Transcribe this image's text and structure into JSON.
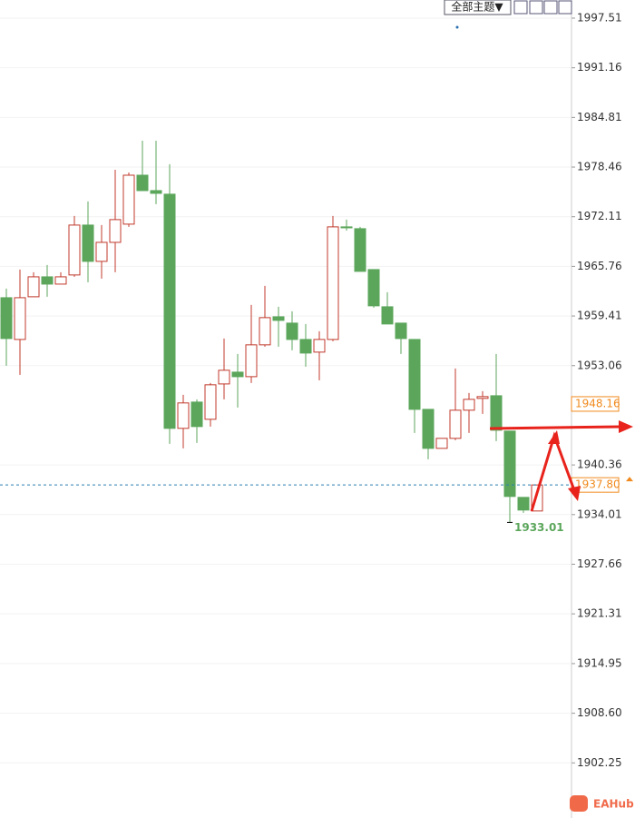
{
  "chart_data": {
    "type": "candlestick",
    "series": [
      {
        "open": [
          1961.75,
          1956.41,
          1961.87,
          1964.42,
          1963.49,
          1964.66,
          1971.04,
          1966.4,
          1968.83,
          1971.16,
          1977.42,
          1975.45,
          1974.99,
          1945.04,
          1948.4,
          1946.2,
          1950.72,
          1952.23,
          1951.65,
          1955.72,
          1959.31,
          1958.5,
          1956.41,
          1954.79,
          1956.41,
          1970.81,
          1970.58,
          1965.35,
          1960.59,
          1958.5,
          1956.41,
          1947.47,
          1942.48,
          1943.76,
          1947.36,
          1948.87,
          1949.21,
          1944.69,
          1936.21,
          1934.47
        ],
        "high": [
          1962.91,
          1965.35,
          1965.0,
          1965.93,
          1965.0,
          1972.2,
          1974.06,
          1971.04,
          1978.12,
          1977.77,
          1981.83,
          1981.83,
          1978.82,
          1949.33,
          1948.75,
          1950.84,
          1956.53,
          1954.55,
          1960.82,
          1963.26,
          1960.59,
          1960.01,
          1958.39,
          1957.46,
          1972.2,
          1971.74,
          1970.81,
          1965.35,
          1962.45,
          1958.5,
          1956.41,
          1947.47,
          1943.76,
          1952.7,
          1949.56,
          1949.79,
          1954.55,
          1944.69,
          1936.21,
          1937.8
        ],
        "low": [
          1953.05,
          1951.88,
          1961.87,
          1961.87,
          1963.49,
          1964.42,
          1963.73,
          1964.19,
          1965.0,
          1970.81,
          1975.45,
          1973.71,
          1943.06,
          1942.48,
          1943.18,
          1945.27,
          1948.75,
          1947.71,
          1950.84,
          1955.48,
          1955.48,
          1955.02,
          1952.93,
          1951.19,
          1956.18,
          1970.34,
          1965.12,
          1960.48,
          1958.39,
          1954.55,
          1944.45,
          1941.09,
          1942.48,
          1943.53,
          1944.45,
          1946.89,
          1943.41,
          1933.01,
          1934.24,
          1934.47
        ],
        "close": [
          1956.53,
          1961.75,
          1964.42,
          1963.49,
          1964.42,
          1971.04,
          1966.4,
          1968.83,
          1971.74,
          1977.42,
          1975.45,
          1975.1,
          1945.04,
          1948.29,
          1945.27,
          1950.61,
          1952.47,
          1951.65,
          1955.72,
          1959.2,
          1958.85,
          1956.41,
          1954.67,
          1956.41,
          1970.81,
          1970.69,
          1965.12,
          1960.71,
          1958.39,
          1956.53,
          1947.47,
          1942.48,
          1943.76,
          1947.36,
          1948.75,
          1949.1,
          1944.8,
          1936.33,
          1934.59,
          1937.8
        ]
      }
    ],
    "up_color": "#c0392b",
    "down_color": "#5ba65b",
    "ylim": [
      1895.2,
      1999.83
    ],
    "yticks": [
      1997.51,
      1991.16,
      1984.81,
      1978.46,
      1972.11,
      1965.76,
      1959.41,
      1953.06,
      1940.36,
      1934.01,
      1927.66,
      1921.31,
      1914.95,
      {
        "value": 1908.6,
        "label": "1908.60"
      },
      1902.25
    ],
    "grid": true,
    "price_labels": [
      {
        "value": 1948.16,
        "label": "1948.16"
      },
      {
        "value": 1937.8,
        "label": "1937.80"
      }
    ],
    "low_annotation_index": 37
  },
  "toolbar": {
    "theme_button": "全部主题▼"
  },
  "watermark": "EAHub"
}
